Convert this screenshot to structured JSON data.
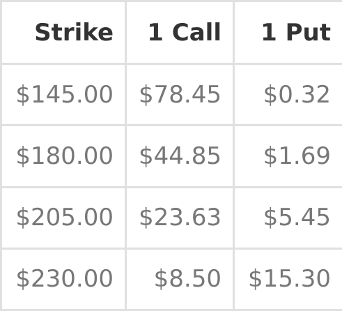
{
  "table": {
    "headers": [
      "Strike",
      "1 Call",
      "1 Put"
    ],
    "rows": [
      [
        "$145.00",
        "$78.45",
        "$0.32"
      ],
      [
        "$180.00",
        "$44.85",
        "$1.69"
      ],
      [
        "$205.00",
        "$23.63",
        "$5.45"
      ],
      [
        "$230.00",
        "$8.50",
        "$15.30"
      ]
    ]
  },
  "colors": {
    "header_text": "#333333",
    "cell_text": "#777777",
    "border": "#e0e0e0",
    "background": "#ffffff"
  }
}
